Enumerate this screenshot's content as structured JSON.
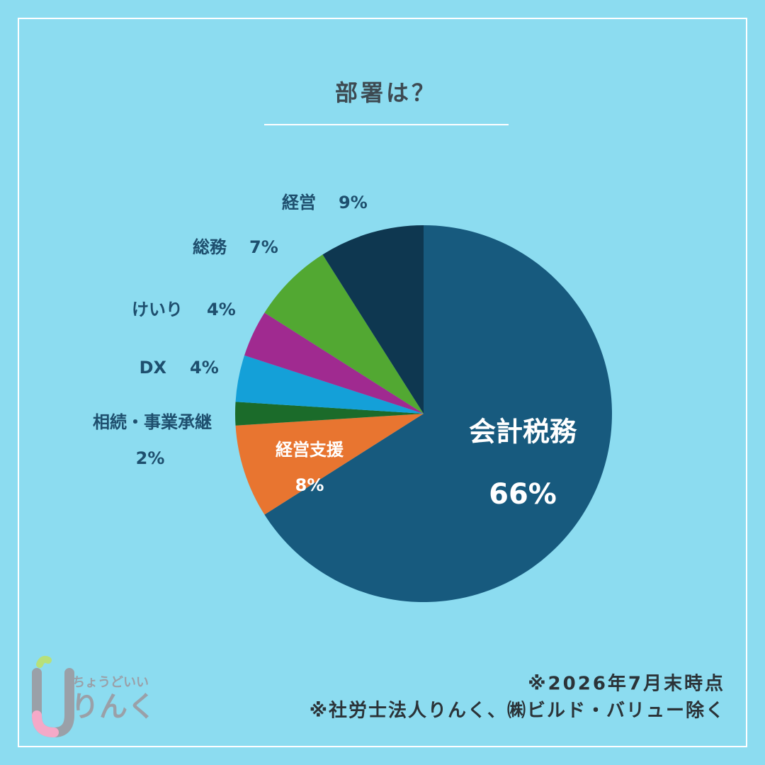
{
  "chart_data": {
    "type": "pie",
    "title": "部署は？",
    "categories": [
      "会計税務",
      "経営支援",
      "相続・事業承継",
      "DX",
      "けいり",
      "総務",
      "経営"
    ],
    "values": [
      66,
      8,
      2,
      4,
      4,
      7,
      9
    ],
    "value_labels": [
      "66%",
      "8%",
      "2%",
      "4%",
      "4%",
      "7%",
      "9%"
    ],
    "colors": [
      "#175a7e",
      "#e87530",
      "#1b6b2a",
      "#14a0d8",
      "#a02a90",
      "#52a832",
      "#0e3750"
    ]
  },
  "notes": [
    "※2026年7月末時点",
    "※社労士法人りんく、㈱ビルド・バリュー除く"
  ],
  "logo": {
    "tagline": "ちょうどいい",
    "name": "りんく"
  }
}
